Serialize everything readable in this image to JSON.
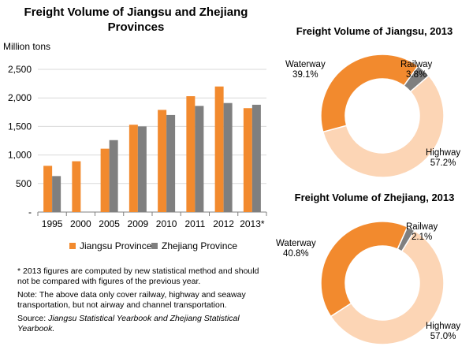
{
  "bar_chart": {
    "title": "Freight Volume of Jiangsu and Zhejiang Provinces",
    "unit_label": "Million tons",
    "legend": [
      "Jiangsu Province",
      "Zhejiang Province"
    ]
  },
  "notes": {
    "note1": "* 2013 figures are computed by new statistical method and  should not be compared with figures of the previous year.",
    "note2": "Note: The above data only cover railway, highway and seaway transportation, but not  airway and channel transportation.",
    "source_label": "Source: ",
    "source_text": "Jiangsu Statistical Yearbook and Zhejiang Statistical Yearbook."
  },
  "pie_jiangsu": {
    "title": "Freight Volume of Jiangsu, 2013",
    "labels": {
      "waterway": "Waterway",
      "waterway_pct": "39.1%",
      "railway": "Railway",
      "railway_pct": "3.8%",
      "highway": "Highway",
      "highway_pct": "57.2%"
    }
  },
  "pie_zhejiang": {
    "title": "Freight Volume of Zhejiang, 2013",
    "labels": {
      "waterway": "Waterway",
      "waterway_pct": "40.8%",
      "railway": "Railway",
      "railway_pct": "2.1%",
      "highway": "Highway",
      "highway_pct": "57.0%"
    }
  },
  "chart_data": [
    {
      "type": "bar",
      "title": "Freight Volume of Jiangsu and Zhejiang Provinces",
      "ylabel": "Million tons",
      "categories": [
        "1995",
        "2000",
        "2005",
        "2009",
        "2010",
        "2011",
        "2012",
        "2013*"
      ],
      "series": [
        {
          "name": "Jiangsu Province",
          "values": [
            810,
            890,
            1110,
            1530,
            1790,
            2030,
            2200,
            1820
          ],
          "color": "#F28A2E"
        },
        {
          "name": "Zhejiang Province",
          "values": [
            630,
            null,
            1260,
            1500,
            1700,
            1860,
            1910,
            1880
          ],
          "color": "#7F7F7F"
        }
      ],
      "ylim": [
        0,
        2500
      ],
      "yticks": [
        0,
        500,
        1000,
        1500,
        2000,
        2500
      ],
      "ytick_labels": [
        "-",
        "500",
        "1,000",
        "1,500",
        "2,000",
        "2,500"
      ],
      "grid": true,
      "legend_position": "bottom"
    },
    {
      "type": "pie",
      "style": "donut",
      "title": "Freight Volume of Jiangsu, 2013",
      "slices": [
        {
          "label": "Railway",
          "value": 3.8,
          "color": "#7F7F7F"
        },
        {
          "label": "Highway",
          "value": 57.2,
          "color": "#FCD5B5"
        },
        {
          "label": "Waterway",
          "value": 39.1,
          "color": "#F28A2E"
        }
      ]
    },
    {
      "type": "pie",
      "style": "donut",
      "title": "Freight Volume of Zhejiang, 2013",
      "slices": [
        {
          "label": "Railway",
          "value": 2.1,
          "color": "#7F7F7F"
        },
        {
          "label": "Highway",
          "value": 57.0,
          "color": "#FCD5B5"
        },
        {
          "label": "Waterway",
          "value": 40.8,
          "color": "#F28A2E"
        }
      ]
    }
  ]
}
